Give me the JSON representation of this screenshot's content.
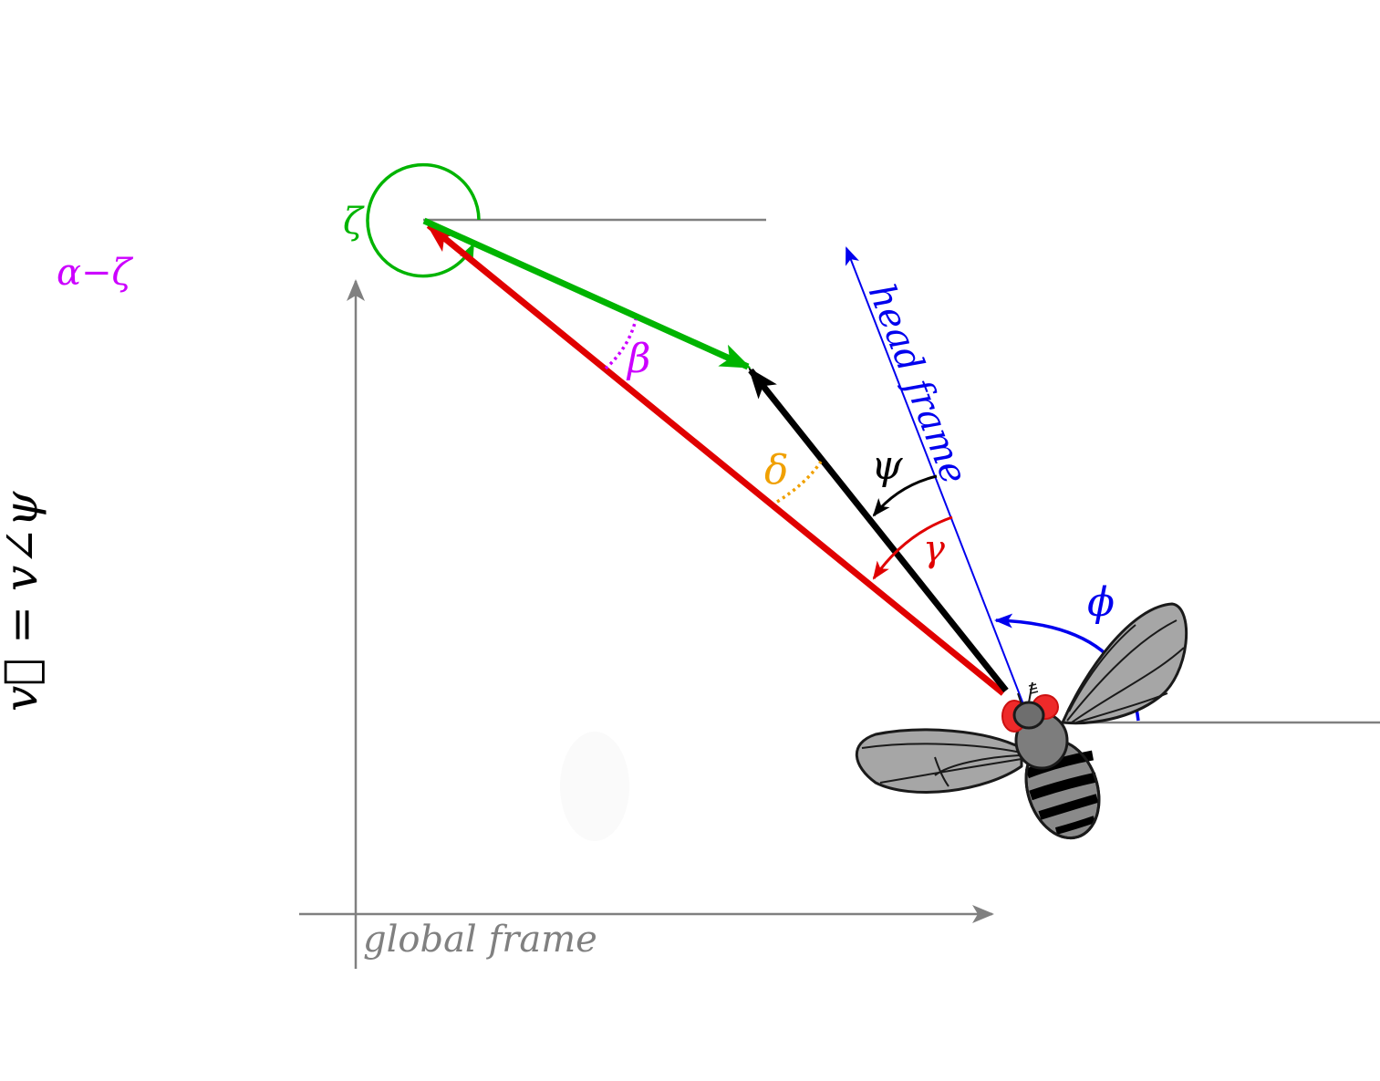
{
  "labels": {
    "zeta": "ζ",
    "alpha_minus_zeta": "α−ζ",
    "beta": "β",
    "delta": "δ",
    "psi": "ψ",
    "gamma": "γ",
    "phi": "ϕ",
    "head_frame": "head frame",
    "global_frame": "global frame",
    "velocity_eq": "v⃗ = v∠ψ"
  },
  "colors": {
    "green": "#00b400",
    "red": "#e00000",
    "black": "#000000",
    "blue": "#0000ee",
    "magenta": "#cc00ff",
    "orange": "#f0a000",
    "gray": "#808080"
  },
  "icons": {
    "fly": "fly-icon"
  }
}
